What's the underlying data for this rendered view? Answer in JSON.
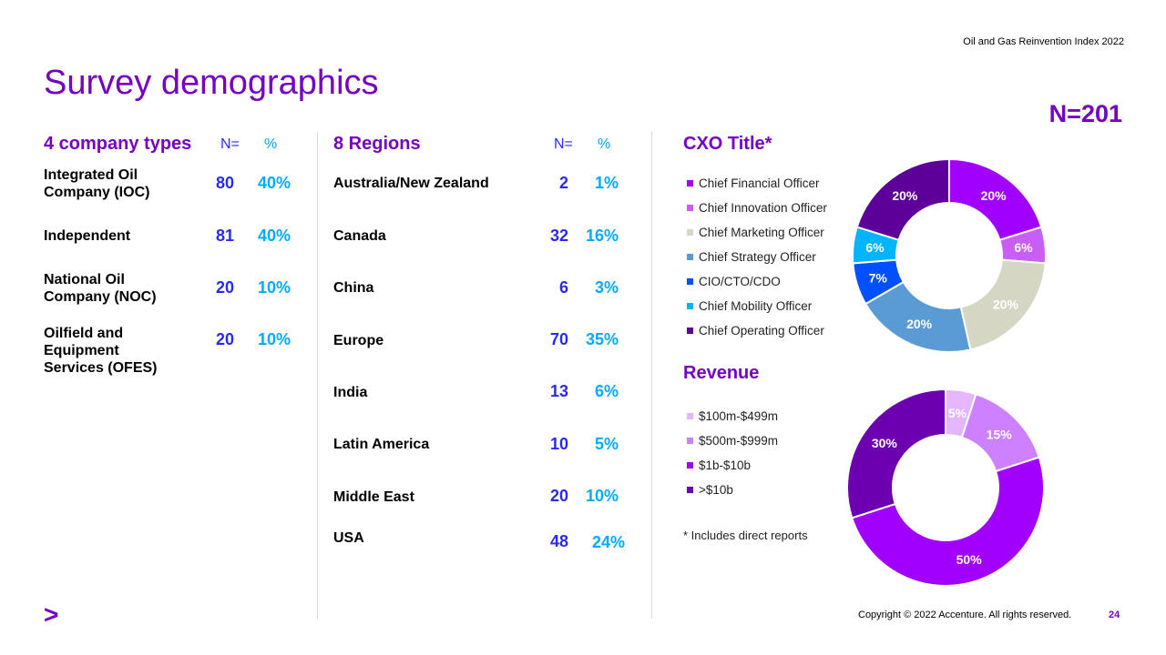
{
  "header": {
    "report": "Oil and Gas Reinvention Index 2022"
  },
  "page_title": "Survey demographics",
  "total_n": "N=201",
  "company_types": {
    "title": "4 company types",
    "n_head": "N=",
    "pct_head": "%",
    "rows": [
      {
        "label": "Integrated Oil Company (IOC)",
        "n": "80",
        "pct": "40%"
      },
      {
        "label": "Independent",
        "n": "81",
        "pct": "40%"
      },
      {
        "label": "National Oil Company (NOC)",
        "n": "20",
        "pct": "10%"
      },
      {
        "label": "Oilfield and Equipment Services (OFES)",
        "n": "20",
        "pct": "10%"
      }
    ]
  },
  "regions": {
    "title": "8 Regions",
    "n_head": "N=",
    "pct_head": "%",
    "rows": [
      {
        "label": "Australia/New Zealand",
        "n": "2",
        "pct": "1%"
      },
      {
        "label": "Canada",
        "n": "32",
        "pct": "16%"
      },
      {
        "label": "China",
        "n": "6",
        "pct": "3%"
      },
      {
        "label": "Europe",
        "n": "70",
        "pct": "35%"
      },
      {
        "label": "India",
        "n": "13",
        "pct": "6%"
      },
      {
        "label": "Latin America",
        "n": "10",
        "pct": "5%"
      },
      {
        "label": "Middle East",
        "n": "20",
        "pct": "10%"
      },
      {
        "label": "USA",
        "n": "48",
        "pct": "24%"
      }
    ]
  },
  "chart_data": [
    {
      "type": "pie",
      "donut": true,
      "title": "CXO Title*",
      "legend_position": "left",
      "series": [
        {
          "name": "Chief Financial Officer",
          "value": 20,
          "label": "20%",
          "color": "#a100ff"
        },
        {
          "name": "Chief Innovation Officer",
          "value": 6,
          "label": "6%",
          "color": "#c95ef5"
        },
        {
          "name": "Chief Marketing Officer",
          "value": 20,
          "label": "20%",
          "color": "#d6d6c5"
        },
        {
          "name": "Chief Strategy Officer",
          "value": 20,
          "label": "20%",
          "color": "#5b9bd5"
        },
        {
          "name": "CIO/CTO/CDO",
          "value": 7,
          "label": "7%",
          "color": "#0050ff"
        },
        {
          "name": "Chief Mobility Officer",
          "value": 6,
          "label": "6%",
          "color": "#00b4ff"
        },
        {
          "name": "Chief Operating Officer",
          "value": 20,
          "label": "20%",
          "color": "#5c0099"
        }
      ]
    },
    {
      "type": "pie",
      "donut": true,
      "title": "Revenue",
      "legend_position": "left",
      "series": [
        {
          "name": "$100m-$499m",
          "value": 5,
          "label": "5%",
          "color": "#e3b6ff"
        },
        {
          "name": "$500m-$999m",
          "value": 15,
          "label": "15%",
          "color": "#cd80ff"
        },
        {
          "name": "$1b-$10b",
          "value": 50,
          "label": "50%",
          "color": "#a100ff"
        },
        {
          "name": ">$10b",
          "value": 30,
          "label": "30%",
          "color": "#6c00b0"
        }
      ]
    }
  ],
  "footnote": "* Includes direct reports",
  "footer": {
    "copyright": "Copyright © 2022 Accenture. All rights reserved.",
    "page": "24"
  },
  "logo": {
    "glyph": ">"
  },
  "colors": {
    "brand_purple": "#7500c0",
    "n_blue": "#2a2ae8",
    "pct_cyan": "#00aaff"
  }
}
